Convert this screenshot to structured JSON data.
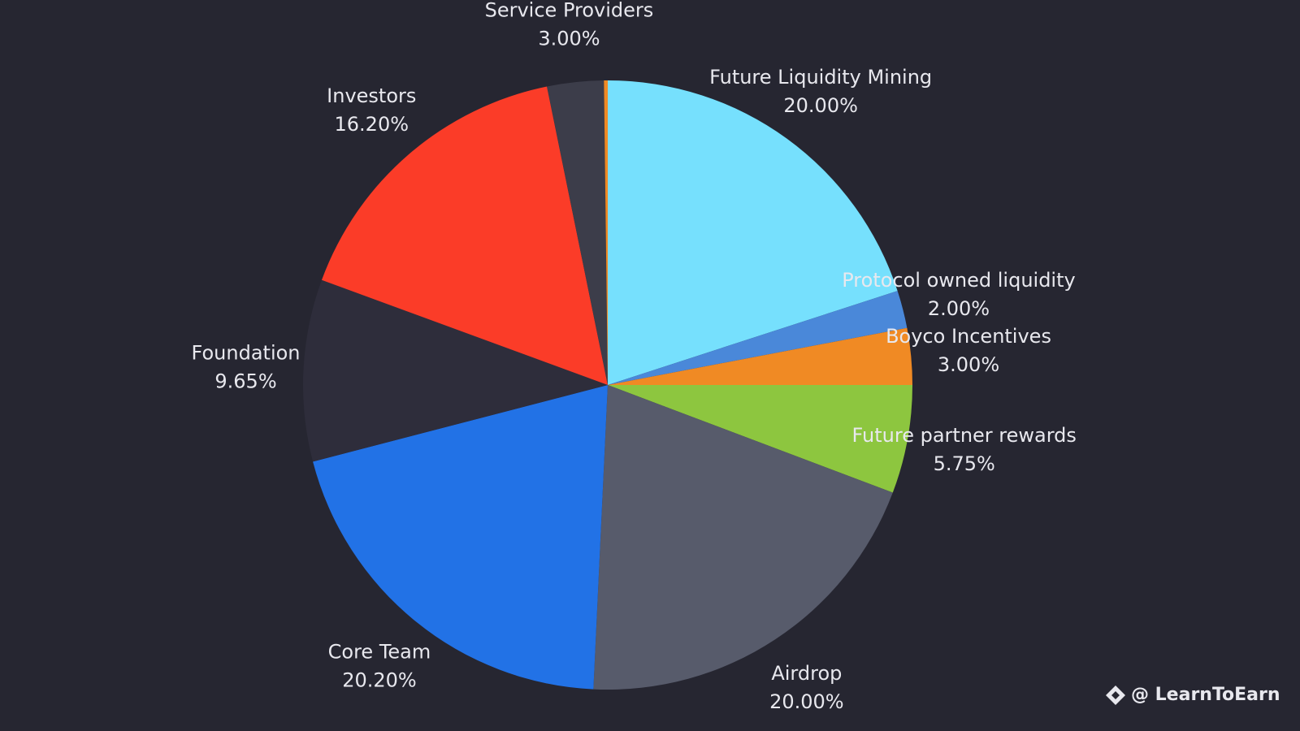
{
  "chart_data": {
    "type": "pie",
    "categories": [
      "Future Liquidity Mining",
      "Protocol owned liquidity",
      "Boyco Incentives",
      "Future partner rewards",
      "Airdrop",
      "Core Team",
      "Foundation",
      "Investors",
      "Service Providers",
      null
    ],
    "values": [
      20.0,
      2.0,
      3.0,
      5.75,
      20.0,
      20.2,
      9.65,
      16.2,
      3.0,
      0.2
    ],
    "value_labels": [
      "20.00%",
      "2.00%",
      "3.00%",
      "5.75%",
      "20.00%",
      "20.20%",
      "9.65%",
      "16.20%",
      "3.00%",
      null
    ],
    "colors": [
      "#76e0fd",
      "#4a88d9",
      "#f08a24",
      "#8dc63f",
      "#575b6b",
      "#2272e6",
      "#2e2d3b",
      "#fb3c28",
      "#3c3d4a",
      "#f08a24"
    ],
    "watermark": "@ LearnToEarn"
  }
}
